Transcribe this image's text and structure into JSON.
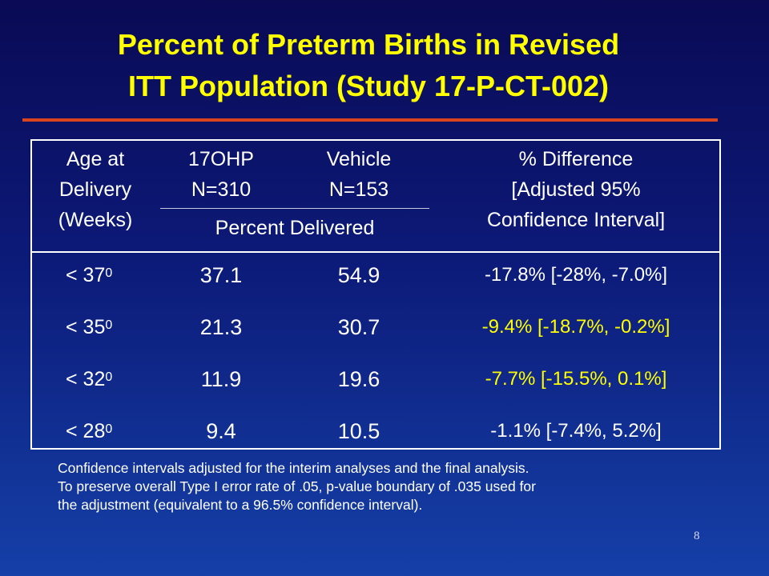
{
  "title": {
    "line1": "Percent of Preterm Births in Revised",
    "line2": "ITT Population (Study 17-P-CT-002)"
  },
  "colors": {
    "title": "#ffff00",
    "text": "#ffffff",
    "highlight": "#ffff00",
    "rule": "#d9451f",
    "background_top": "#0a0a55",
    "background_bottom": "#1540a8"
  },
  "table": {
    "headers": {
      "age": [
        "Age at",
        "Delivery",
        "(Weeks)"
      ],
      "group1": [
        "17OHP",
        "N=310"
      ],
      "group2": [
        "Vehicle",
        "N=153"
      ],
      "difference": [
        "% Difference",
        "[Adjusted 95%",
        "Confidence Interval]"
      ],
      "subheader": "Percent Delivered"
    },
    "rows": [
      {
        "age": "< 37",
        "age_sup": "0",
        "ohp": "37.1",
        "vehicle": "54.9",
        "difference": "-17.8% [-28%, -7.0%]",
        "highlight": false
      },
      {
        "age": "< 35",
        "age_sup": "0",
        "ohp": "21.3",
        "vehicle": "30.7",
        "difference": "-9.4% [-18.7%, -0.2%]",
        "highlight": true
      },
      {
        "age": "< 32",
        "age_sup": "0",
        "ohp": "11.9",
        "vehicle": "19.6",
        "difference": "-7.7% [-15.5%, 0.1%]",
        "highlight": true
      },
      {
        "age": "< 28",
        "age_sup": "0",
        "ohp": "9.4",
        "vehicle": "10.5",
        "difference": "-1.1% [-7.4%, 5.2%]",
        "highlight": false
      }
    ]
  },
  "footnote": [
    "Confidence intervals adjusted for the interim analyses and the final analysis.",
    "To preserve overall Type I error rate of .05, p-value boundary of .035 used for",
    "the adjustment (equivalent to a 96.5% confidence interval)."
  ],
  "page_number": "8"
}
